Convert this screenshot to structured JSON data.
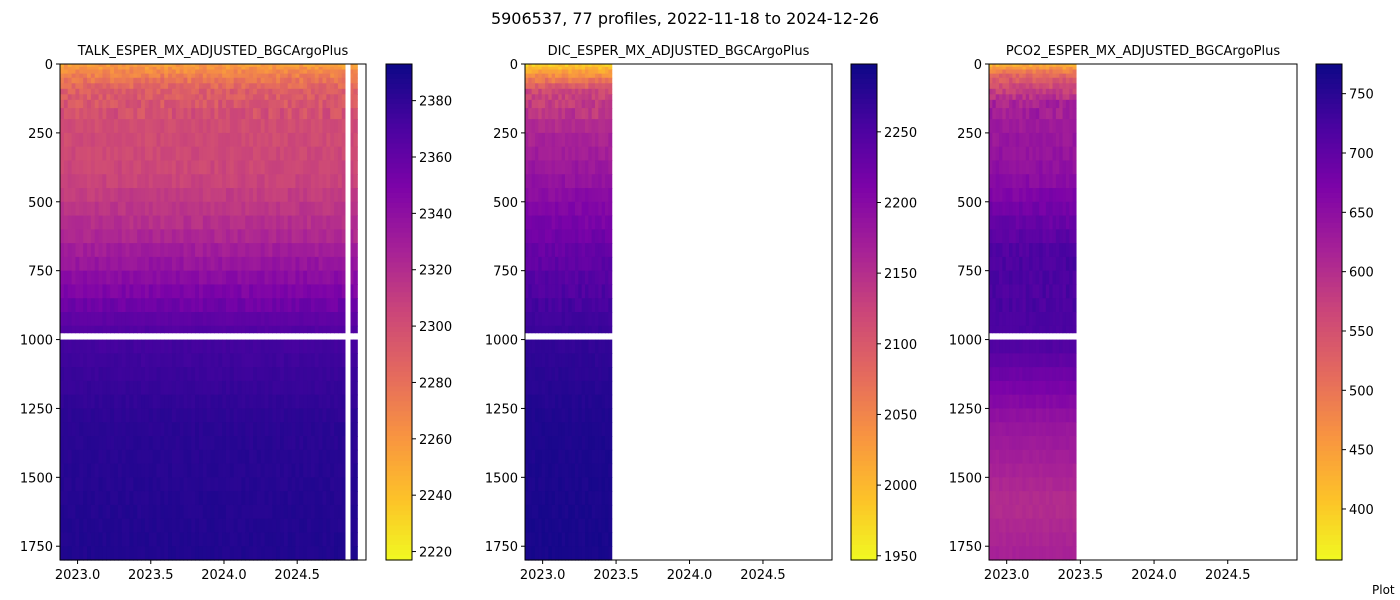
{
  "figure": {
    "suptitle": "5906537, 77 profiles, 2022-11-18 to 2024-12-26",
    "footer_text": "Plot"
  },
  "chart_data": [
    {
      "type": "heatmap",
      "title": "TALK_ESPER_MX_ADJUSTED_BGCArgoPlus",
      "xlabel": "",
      "ylabel": "",
      "x_ticks": [
        "2023.0",
        "2023.5",
        "2024.0",
        "2024.5"
      ],
      "x_tick_values": [
        2023.0,
        2023.5,
        2024.0,
        2024.5
      ],
      "xlim": [
        2022.88,
        2024.97
      ],
      "y_ticks": [
        "0",
        "250",
        "500",
        "750",
        "1000",
        "1250",
        "1500",
        "1750"
      ],
      "y_tick_values": [
        0,
        250,
        500,
        750,
        1000,
        1250,
        1500,
        1750
      ],
      "ylim": [
        1800,
        0
      ],
      "y_inverted": true,
      "data_x_range": [
        2022.88,
        2024.91
      ],
      "colormap": "plasma_r",
      "colorbar_ticks": [
        "2220",
        "2240",
        "2260",
        "2280",
        "2300",
        "2320",
        "2340",
        "2360",
        "2380"
      ],
      "colorbar_tick_values": [
        2220,
        2240,
        2260,
        2280,
        2300,
        2320,
        2340,
        2360,
        2380
      ],
      "colorbar_range": [
        2217,
        2393
      ],
      "depth_value_profile": [
        {
          "depth": 0,
          "value": 2255
        },
        {
          "depth": 50,
          "value": 2275
        },
        {
          "depth": 100,
          "value": 2290
        },
        {
          "depth": 200,
          "value": 2300
        },
        {
          "depth": 400,
          "value": 2305
        },
        {
          "depth": 600,
          "value": 2320
        },
        {
          "depth": 800,
          "value": 2345
        },
        {
          "depth": 1000,
          "value": 2372
        },
        {
          "depth": 1300,
          "value": 2382
        },
        {
          "depth": 1800,
          "value": 2386
        }
      ]
    },
    {
      "type": "heatmap",
      "title": "DIC_ESPER_MX_ADJUSTED_BGCArgoPlus",
      "xlabel": "",
      "ylabel": "",
      "x_ticks": [
        "2023.0",
        "2023.5",
        "2024.0",
        "2024.5"
      ],
      "x_tick_values": [
        2023.0,
        2023.5,
        2024.0,
        2024.5
      ],
      "xlim": [
        2022.88,
        2024.97
      ],
      "y_ticks": [
        "0",
        "250",
        "500",
        "750",
        "1000",
        "1250",
        "1500",
        "1750"
      ],
      "y_tick_values": [
        0,
        250,
        500,
        750,
        1000,
        1250,
        1500,
        1750
      ],
      "ylim": [
        1800,
        0
      ],
      "y_inverted": true,
      "data_x_range": [
        2022.88,
        2023.47
      ],
      "colormap": "plasma_r",
      "colorbar_ticks": [
        "1950",
        "2000",
        "2050",
        "2100",
        "2150",
        "2200",
        "2250"
      ],
      "colorbar_tick_values": [
        1950,
        2000,
        2050,
        2100,
        2150,
        2200,
        2250
      ],
      "colorbar_range": [
        1947,
        2298
      ],
      "depth_value_profile": [
        {
          "depth": 0,
          "value": 1975
        },
        {
          "depth": 40,
          "value": 2040
        },
        {
          "depth": 100,
          "value": 2120
        },
        {
          "depth": 250,
          "value": 2160
        },
        {
          "depth": 500,
          "value": 2200
        },
        {
          "depth": 750,
          "value": 2240
        },
        {
          "depth": 1000,
          "value": 2270
        },
        {
          "depth": 1300,
          "value": 2285
        },
        {
          "depth": 1800,
          "value": 2290
        }
      ]
    },
    {
      "type": "heatmap",
      "title": "PCO2_ESPER_MX_ADJUSTED_BGCArgoPlus",
      "xlabel": "",
      "ylabel": "",
      "x_ticks": [
        "2023.0",
        "2023.5",
        "2024.0",
        "2024.5"
      ],
      "x_tick_values": [
        2023.0,
        2023.5,
        2024.0,
        2024.5
      ],
      "xlim": [
        2022.88,
        2024.97
      ],
      "y_ticks": [
        "0",
        "250",
        "500",
        "750",
        "1000",
        "1250",
        "1500",
        "1750"
      ],
      "y_tick_values": [
        0,
        250,
        500,
        750,
        1000,
        1250,
        1500,
        1750
      ],
      "ylim": [
        1800,
        0
      ],
      "y_inverted": true,
      "data_x_range": [
        2022.88,
        2023.47
      ],
      "colormap": "plasma_r",
      "colorbar_ticks": [
        "400",
        "450",
        "500",
        "550",
        "600",
        "650",
        "700",
        "750"
      ],
      "colorbar_tick_values": [
        400,
        450,
        500,
        550,
        600,
        650,
        700,
        750
      ],
      "colorbar_range": [
        357,
        775
      ],
      "depth_value_profile": [
        {
          "depth": 0,
          "value": 420
        },
        {
          "depth": 40,
          "value": 520
        },
        {
          "depth": 150,
          "value": 620
        },
        {
          "depth": 400,
          "value": 650
        },
        {
          "depth": 700,
          "value": 720
        },
        {
          "depth": 1000,
          "value": 720
        },
        {
          "depth": 1300,
          "value": 640
        },
        {
          "depth": 1600,
          "value": 600
        },
        {
          "depth": 1800,
          "value": 620
        }
      ]
    }
  ]
}
